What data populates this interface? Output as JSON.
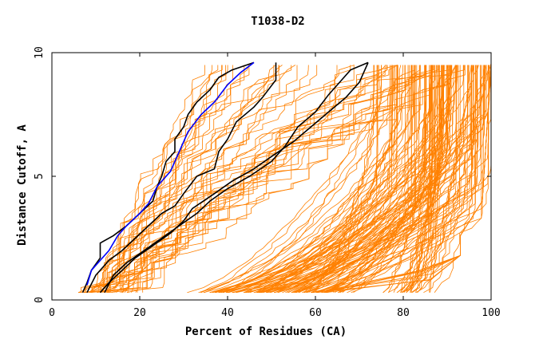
{
  "chart_data": {
    "type": "line",
    "title": "T1038-D2",
    "xlabel": "Percent of Residues (CA)",
    "ylabel": "Distance Cutoff, A",
    "xlim": [
      0,
      100
    ],
    "ylim": [
      0,
      10
    ],
    "x_ticks": [
      0,
      20,
      40,
      60,
      80,
      100
    ],
    "y_ticks": [
      0,
      5,
      10
    ],
    "colors": {
      "background_series": "#ff8000",
      "highlight_black": "#000000",
      "highlight_blue": "#0000ff"
    },
    "background_series_description": "many orange model curves (GDT plots)",
    "highlight_series": [
      {
        "name": "black-1",
        "color": "#000000",
        "points": [
          [
            7,
            0.3
          ],
          [
            8,
            0.7
          ],
          [
            9,
            1.2
          ],
          [
            11,
            1.7
          ],
          [
            11,
            2.3
          ],
          [
            14,
            2.6
          ],
          [
            17,
            3.0
          ],
          [
            20,
            3.5
          ],
          [
            23,
            4.0
          ],
          [
            24,
            4.6
          ],
          [
            25,
            5.0
          ],
          [
            26,
            5.6
          ],
          [
            28,
            6.0
          ],
          [
            28,
            6.5
          ],
          [
            30,
            7.0
          ],
          [
            31,
            7.5
          ],
          [
            33,
            8.0
          ],
          [
            36,
            8.5
          ],
          [
            38,
            9.0
          ],
          [
            41,
            9.3
          ],
          [
            46,
            9.6
          ]
        ]
      },
      {
        "name": "blue",
        "color": "#0000ff",
        "points": [
          [
            8,
            0.6
          ],
          [
            9,
            1.2
          ],
          [
            11,
            1.6
          ],
          [
            13,
            2.0
          ],
          [
            15,
            2.6
          ],
          [
            17,
            3.0
          ],
          [
            20,
            3.5
          ],
          [
            22,
            3.9
          ],
          [
            24,
            4.6
          ],
          [
            27,
            5.2
          ],
          [
            29,
            6.0
          ],
          [
            31,
            6.8
          ],
          [
            34,
            7.5
          ],
          [
            37,
            8.0
          ],
          [
            40,
            8.7
          ],
          [
            43,
            9.2
          ],
          [
            46,
            9.6
          ]
        ]
      },
      {
        "name": "black-2",
        "color": "#000000",
        "points": [
          [
            8,
            0.3
          ],
          [
            10,
            1.0
          ],
          [
            13,
            1.6
          ],
          [
            16,
            2.0
          ],
          [
            19,
            2.5
          ],
          [
            22,
            3.0
          ],
          [
            25,
            3.5
          ],
          [
            28,
            3.8
          ],
          [
            30,
            4.3
          ],
          [
            33,
            5.0
          ],
          [
            37,
            5.3
          ],
          [
            38,
            6.0
          ],
          [
            40,
            6.5
          ],
          [
            42,
            7.2
          ],
          [
            46,
            7.8
          ],
          [
            48,
            8.2
          ],
          [
            51,
            8.9
          ],
          [
            51,
            9.6
          ]
        ]
      },
      {
        "name": "black-3",
        "color": "#000000",
        "points": [
          [
            12,
            0.3
          ],
          [
            14,
            1.0
          ],
          [
            17,
            1.5
          ],
          [
            21,
            2.0
          ],
          [
            25,
            2.5
          ],
          [
            29,
            3.0
          ],
          [
            33,
            3.5
          ],
          [
            36,
            4.0
          ],
          [
            40,
            4.5
          ],
          [
            45,
            5.0
          ],
          [
            50,
            5.6
          ],
          [
            53,
            6.2
          ],
          [
            56,
            7.0
          ],
          [
            60,
            7.6
          ],
          [
            63,
            8.3
          ],
          [
            66,
            8.9
          ],
          [
            68,
            9.3
          ],
          [
            72,
            9.6
          ]
        ]
      },
      {
        "name": "black-4",
        "color": "#000000",
        "points": [
          [
            11,
            0.3
          ],
          [
            13,
            0.7
          ],
          [
            16,
            1.2
          ],
          [
            19,
            1.7
          ],
          [
            23,
            2.2
          ],
          [
            27,
            2.7
          ],
          [
            30,
            3.2
          ],
          [
            32,
            3.7
          ],
          [
            37,
            4.3
          ],
          [
            41,
            4.8
          ],
          [
            46,
            5.3
          ],
          [
            50,
            5.8
          ],
          [
            55,
            6.4
          ],
          [
            59,
            7.0
          ],
          [
            63,
            7.6
          ],
          [
            67,
            8.2
          ],
          [
            70,
            8.8
          ],
          [
            72,
            9.6
          ]
        ]
      }
    ]
  }
}
